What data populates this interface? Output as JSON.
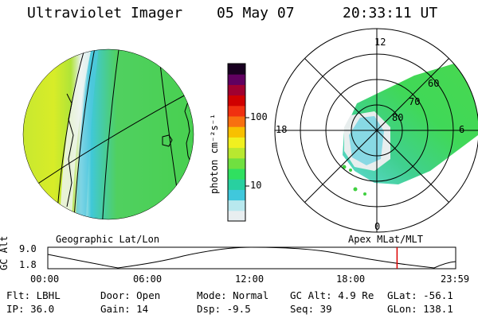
{
  "header": {
    "title": "Ultraviolet Imager",
    "date": "05 May 07",
    "time": "20:33:11 UT"
  },
  "left_panel": {
    "label": "Geographic Lat/Lon"
  },
  "right_panel": {
    "label": "Apex MLat/MLT",
    "mlt_labels": [
      "12",
      "18",
      "6",
      "0"
    ],
    "mlat_labels": [
      "60",
      "70",
      "80"
    ]
  },
  "colorbar": {
    "unit": "photon cm⁻²s⁻¹",
    "ticks": [
      "100",
      "10"
    ],
    "scale": "log",
    "colors": [
      "#e8eef0",
      "#b8e8ee",
      "#40c8dc",
      "#28d0a0",
      "#30e060",
      "#70e040",
      "#b8e830",
      "#f0f020",
      "#f8c000",
      "#f87010",
      "#f03010",
      "#d00000",
      "#a00030",
      "#600060",
      "#180020"
    ]
  },
  "altitude_plot": {
    "ylabel": "GC Alt",
    "yticks": [
      "9.0",
      "1.8"
    ],
    "xticks": [
      "00:00",
      "06:00",
      "12:00",
      "18:00",
      "23:59"
    ],
    "current_time_hours": 20.55,
    "marker_color": "#dd0000"
  },
  "info": {
    "filter": "Flt: LBHL",
    "ip": "IP: 36.0",
    "door": "Door: Open",
    "gain": "Gain: 14",
    "mode": "Mode: Normal",
    "dsp": "Dsp:   -9.5",
    "gc_alt": "GC Alt: 4.9 Re",
    "seq": "Seq: 39",
    "glat": "GLat: -56.1",
    "glon": "GLon: 138.1"
  }
}
